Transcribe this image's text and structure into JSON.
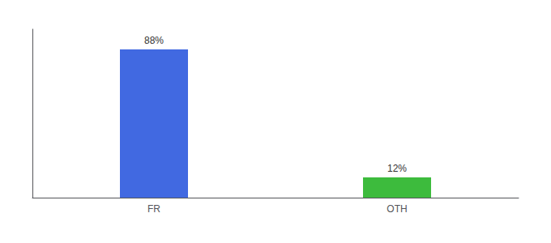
{
  "chart_data": {
    "type": "bar",
    "categories": [
      "FR",
      "OTH"
    ],
    "values": [
      88,
      12
    ],
    "value_labels": [
      "88%",
      "12%"
    ],
    "data_labels": true,
    "colors": [
      "#4169e1",
      "#3dbb3d"
    ],
    "ylim": [
      0,
      100
    ],
    "tick_labels": "x",
    "grid": false
  }
}
